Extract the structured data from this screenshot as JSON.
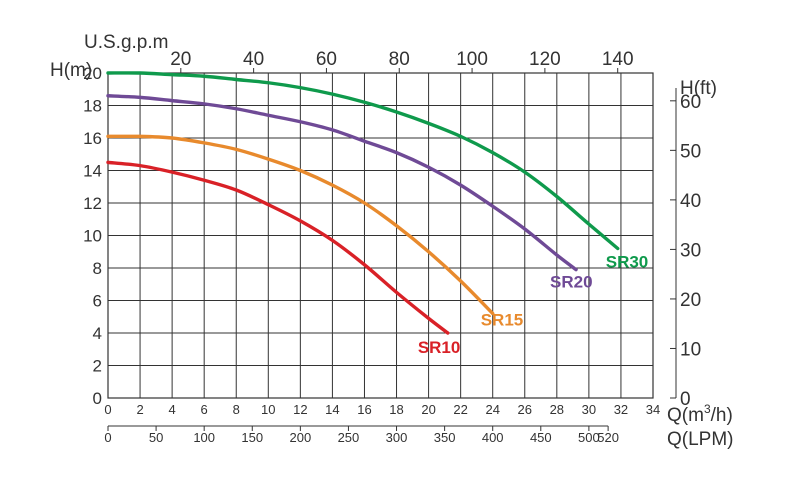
{
  "chart_data": {
    "type": "line",
    "title": "",
    "axes": {
      "y_left": {
        "label": "H(m)",
        "min": 0,
        "max": 20,
        "step": 2,
        "ticks": [
          0,
          2,
          4,
          6,
          8,
          10,
          12,
          14,
          16,
          18,
          20
        ]
      },
      "y_right": {
        "label": "H(ft)",
        "ticks": [
          0,
          10,
          20,
          30,
          40,
          50,
          60
        ]
      },
      "x_m3h": {
        "label": "Q(m³/h)",
        "label_base": "Q(m",
        "label_sup": "3",
        "label_end": "/h)",
        "min": 0,
        "max": 34,
        "step": 2,
        "ticks": [
          0,
          2,
          4,
          6,
          8,
          10,
          12,
          14,
          16,
          18,
          20,
          22,
          24,
          26,
          28,
          30,
          32,
          34
        ]
      },
      "x_lpm": {
        "label": "Q(LPM)",
        "ticks": [
          0,
          50,
          100,
          150,
          200,
          250,
          300,
          350,
          400,
          450,
          500,
          520
        ]
      },
      "x_usgpm": {
        "label": "U.S.g.p.m",
        "ticks": [
          20,
          40,
          60,
          80,
          100,
          120,
          140
        ]
      }
    },
    "grid": true,
    "series": [
      {
        "name": "SR10",
        "color": "#d92127",
        "x": [
          0,
          2,
          4,
          6,
          8,
          10,
          12,
          14,
          16,
          18,
          20,
          21.2
        ],
        "y": [
          14.5,
          14.3,
          13.9,
          13.4,
          12.8,
          11.9,
          10.9,
          9.7,
          8.2,
          6.5,
          4.9,
          4.0
        ]
      },
      {
        "name": "SR15",
        "color": "#e88a2d",
        "x": [
          0,
          2,
          4,
          6,
          8,
          10,
          12,
          14,
          16,
          18,
          20,
          22,
          24
        ],
        "y": [
          16.1,
          16.1,
          16.0,
          15.7,
          15.3,
          14.7,
          14.0,
          13.1,
          12.0,
          10.6,
          9.0,
          7.2,
          5.2
        ]
      },
      {
        "name": "SR20",
        "color": "#6f4a96",
        "x": [
          0,
          2,
          4,
          6,
          8,
          10,
          12,
          14,
          16,
          18,
          20,
          22,
          24,
          26,
          28,
          29.2
        ],
        "y": [
          18.6,
          18.5,
          18.3,
          18.1,
          17.8,
          17.4,
          17.0,
          16.5,
          15.8,
          15.1,
          14.2,
          13.1,
          11.8,
          10.4,
          8.8,
          7.9
        ]
      },
      {
        "name": "SR30",
        "color": "#0f9a4c",
        "x": [
          0,
          2,
          4,
          6,
          8,
          10,
          12,
          14,
          16,
          18,
          20,
          22,
          24,
          26,
          28,
          30,
          31.8
        ],
        "y": [
          20.0,
          20.0,
          19.9,
          19.8,
          19.6,
          19.4,
          19.1,
          18.7,
          18.2,
          17.6,
          16.9,
          16.1,
          15.1,
          13.9,
          12.4,
          10.7,
          9.2
        ]
      }
    ]
  }
}
